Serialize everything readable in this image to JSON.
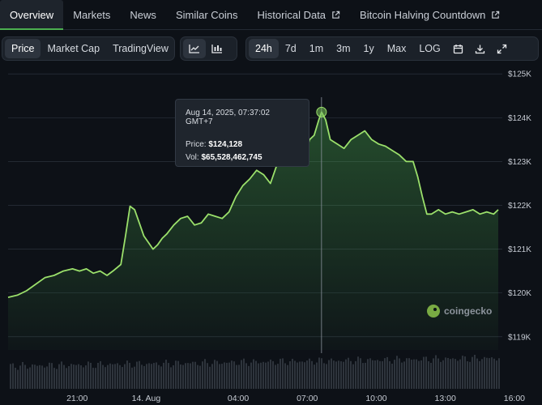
{
  "nav": {
    "tabs": [
      {
        "label": "Overview",
        "active": true
      },
      {
        "label": "Markets"
      },
      {
        "label": "News"
      },
      {
        "label": "Similar Coins"
      },
      {
        "label": "Historical Data",
        "external": true
      },
      {
        "label": "Bitcoin Halving Countdown",
        "external": true
      }
    ]
  },
  "toolbar": {
    "views": [
      "Price",
      "Market Cap",
      "TradingView"
    ],
    "active_view": "Price",
    "chart_types": [
      "line-chart-icon",
      "candlestick-icon"
    ],
    "ranges": [
      "24h",
      "7d",
      "1m",
      "3m",
      "1y",
      "Max",
      "LOG"
    ],
    "active_range": "24h",
    "actions": [
      "calendar-icon",
      "download-icon",
      "expand-icon"
    ]
  },
  "tooltip": {
    "time": "Aug 14, 2025, 07:37:02 GMT+7",
    "price_label": "Price:",
    "price_value": "$124,128",
    "vol_label": "Vol:",
    "vol_value": "$65,528,462,745"
  },
  "watermark": "coingecko",
  "colors": {
    "line": "#9be06b",
    "area": "#4caf50",
    "accent": "#4caf50",
    "background": "#0d1117"
  },
  "chart_data": {
    "type": "area",
    "y_unit": "USD",
    "ylim": [
      118700,
      125300
    ],
    "y_ticks": [
      119000,
      120000,
      121000,
      122000,
      123000,
      124000,
      125000
    ],
    "y_tick_labels": [
      "$119K",
      "$120K",
      "$121K",
      "$122K",
      "$123K",
      "$124K",
      "$125K"
    ],
    "x_tick_labels": [
      "21:00",
      "14. Aug",
      "04:00",
      "07:00",
      "10:00",
      "13:00",
      "16:00"
    ],
    "x_tick_hours": [
      3,
      6,
      10,
      13,
      16,
      19,
      22
    ],
    "crosshair_hour": 13.62,
    "grid": true,
    "series": [
      {
        "points": [
          [
            0,
            119900
          ],
          [
            0.4,
            119950
          ],
          [
            0.8,
            120050
          ],
          [
            1.2,
            120200
          ],
          [
            1.6,
            120350
          ],
          [
            2.0,
            120400
          ],
          [
            2.4,
            120500
          ],
          [
            2.8,
            120550
          ],
          [
            3.1,
            120500
          ],
          [
            3.4,
            120550
          ],
          [
            3.7,
            120450
          ],
          [
            4.0,
            120500
          ],
          [
            4.3,
            120400
          ],
          [
            4.6,
            120520
          ],
          [
            4.9,
            120650
          ],
          [
            5.1,
            121300
          ],
          [
            5.3,
            121980
          ],
          [
            5.5,
            121900
          ],
          [
            5.7,
            121600
          ],
          [
            5.9,
            121300
          ],
          [
            6.1,
            121150
          ],
          [
            6.3,
            121000
          ],
          [
            6.5,
            121100
          ],
          [
            6.7,
            121250
          ],
          [
            6.9,
            121350
          ],
          [
            7.2,
            121550
          ],
          [
            7.5,
            121700
          ],
          [
            7.8,
            121750
          ],
          [
            8.1,
            121550
          ],
          [
            8.4,
            121600
          ],
          [
            8.7,
            121800
          ],
          [
            9.0,
            121750
          ],
          [
            9.3,
            121700
          ],
          [
            9.6,
            121850
          ],
          [
            9.9,
            122200
          ],
          [
            10.2,
            122450
          ],
          [
            10.5,
            122600
          ],
          [
            10.8,
            122800
          ],
          [
            11.1,
            122700
          ],
          [
            11.4,
            122500
          ],
          [
            11.7,
            122950
          ],
          [
            12.0,
            123100
          ],
          [
            12.3,
            122950
          ],
          [
            12.6,
            123300
          ],
          [
            12.9,
            123150
          ],
          [
            13.1,
            123500
          ],
          [
            13.3,
            123600
          ],
          [
            13.5,
            123950
          ],
          [
            13.62,
            124128
          ],
          [
            13.8,
            123950
          ],
          [
            14.0,
            123500
          ],
          [
            14.3,
            123400
          ],
          [
            14.6,
            123300
          ],
          [
            14.9,
            123500
          ],
          [
            15.2,
            123600
          ],
          [
            15.5,
            123700
          ],
          [
            15.8,
            123500
          ],
          [
            16.1,
            123400
          ],
          [
            16.4,
            123350
          ],
          [
            16.7,
            123250
          ],
          [
            17.0,
            123150
          ],
          [
            17.3,
            123000
          ],
          [
            17.6,
            123000
          ],
          [
            17.8,
            122650
          ],
          [
            18.0,
            122200
          ],
          [
            18.2,
            121800
          ],
          [
            18.4,
            121800
          ],
          [
            18.7,
            121900
          ],
          [
            19.0,
            121800
          ],
          [
            19.3,
            121850
          ],
          [
            19.6,
            121800
          ],
          [
            19.9,
            121850
          ],
          [
            20.2,
            121900
          ],
          [
            20.5,
            121800
          ],
          [
            20.8,
            121850
          ],
          [
            21.1,
            121800
          ],
          [
            21.3,
            121900
          ]
        ]
      }
    ]
  }
}
